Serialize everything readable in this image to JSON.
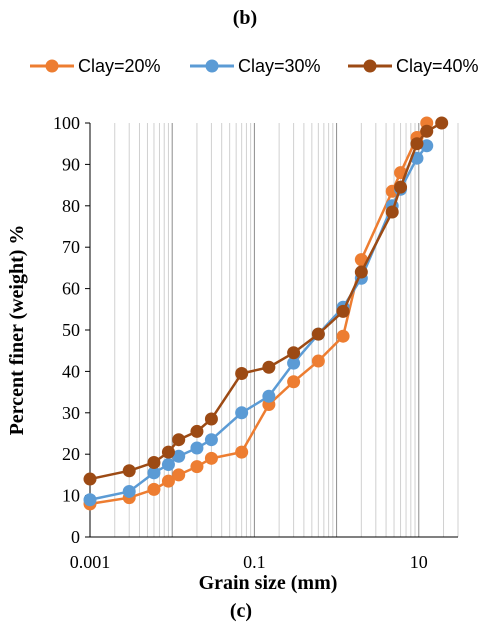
{
  "panel_top_label": "(b)",
  "panel_bottom_label": "(c)",
  "chart_data": {
    "type": "line",
    "xlabel": "Grain size (mm)",
    "ylabel": "Percent finer (weight) %",
    "x_scale": "log",
    "xlim": [
      0.001,
      30
    ],
    "ylim": [
      0,
      100
    ],
    "x_ticks": [
      "0.001",
      "0.1",
      "10"
    ],
    "y_ticks": [
      "0",
      "10",
      "20",
      "30",
      "40",
      "50",
      "60",
      "70",
      "80",
      "90",
      "100"
    ],
    "grid": "vertical minor log gridlines, no horizontal gridlines",
    "legend_position": "top",
    "series": [
      {
        "name": "Clay=20%",
        "color": "#ed7d31",
        "x": [
          0.001,
          0.003,
          0.006,
          0.009,
          0.012,
          0.02,
          0.03,
          0.07,
          0.15,
          0.3,
          0.6,
          1.2,
          2.0,
          4.75,
          6.0,
          9.5,
          12.5
        ],
        "y": [
          8,
          9.5,
          11.5,
          13.5,
          15,
          17,
          19,
          20.5,
          32,
          37.5,
          42.5,
          48.5,
          67,
          83.5,
          88,
          96.5,
          100
        ]
      },
      {
        "name": "Clay=30%",
        "color": "#5b9bd5",
        "x": [
          0.001,
          0.003,
          0.006,
          0.009,
          0.012,
          0.02,
          0.03,
          0.07,
          0.15,
          0.3,
          0.6,
          1.2,
          2.0,
          4.75,
          6.0,
          9.5,
          12.5
        ],
        "y": [
          9,
          11,
          15.5,
          17.5,
          19.5,
          21.5,
          23.5,
          30,
          34,
          42,
          49,
          55.5,
          62.5,
          80,
          84,
          91.5,
          94.5
        ]
      },
      {
        "name": "Clay=40%",
        "color": "#9c4a14",
        "x": [
          0.001,
          0.003,
          0.006,
          0.009,
          0.012,
          0.02,
          0.03,
          0.07,
          0.15,
          0.3,
          0.6,
          1.2,
          2.0,
          4.75,
          6.0,
          9.5,
          12.5,
          19.0
        ],
        "y": [
          14,
          16,
          18,
          20.5,
          23.5,
          25.5,
          28.5,
          39.5,
          41,
          44.5,
          49,
          54.5,
          64,
          78.5,
          84.5,
          95,
          98,
          100
        ]
      }
    ]
  }
}
